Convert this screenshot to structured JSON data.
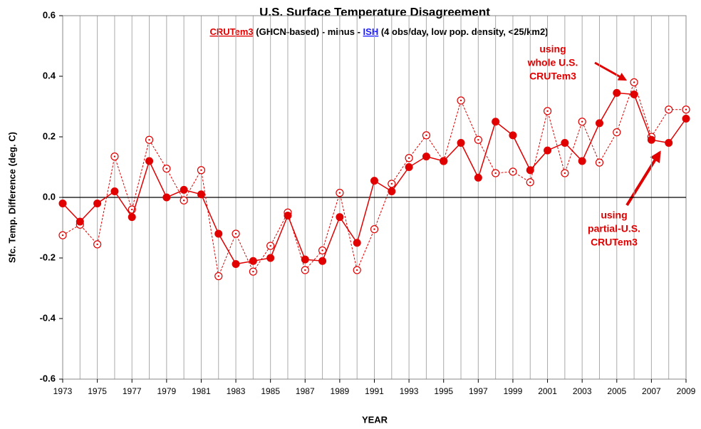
{
  "chart_data": {
    "type": "line",
    "title": "U.S. Surface Temperature Disagreement",
    "subtitle": [
      {
        "text": "CRUTem3",
        "color": "#e00000",
        "underline": true
      },
      {
        "text": "(GHCN-based)",
        "color": "#000000"
      },
      {
        "text": "- minus -",
        "color": "#000000"
      },
      {
        "text": "ISH",
        "color": "#1a1aff",
        "underline": true
      },
      {
        "text": "(4 obs/day, low pop. density, <25/km2)",
        "color": "#000000"
      }
    ],
    "x_label": "YEAR",
    "y_label": "Sfc. Temp. Difference (deg. C)",
    "annotations": [
      [
        "using",
        "whole U.S.",
        "CRUTem3"
      ],
      [
        "using",
        "partial-U.S.",
        "CRUTem3"
      ]
    ],
    "x": [
      1973,
      1974,
      1975,
      1976,
      1977,
      1978,
      1979,
      1980,
      1981,
      1982,
      1983,
      1984,
      1985,
      1986,
      1987,
      1988,
      1989,
      1990,
      1991,
      1992,
      1993,
      1994,
      1995,
      1996,
      1997,
      1998,
      1999,
      2000,
      2001,
      2002,
      2003,
      2004,
      2005,
      2006,
      2007,
      2008,
      2009
    ],
    "series": [
      {
        "color": "#e00000",
        "marker": "filled",
        "dashed": false,
        "values": [
          -0.02,
          -0.08,
          -0.02,
          0.02,
          -0.065,
          0.12,
          0.0,
          0.025,
          0.01,
          -0.12,
          -0.22,
          -0.21,
          -0.2,
          -0.06,
          -0.205,
          -0.21,
          -0.065,
          -0.15,
          0.055,
          0.02,
          0.1,
          0.135,
          0.12,
          0.18,
          0.065,
          0.25,
          0.205,
          0.09,
          0.155,
          0.18,
          0.12,
          0.245,
          0.345,
          0.34,
          0.19,
          0.18,
          0.26
        ]
      },
      {
        "color": "#e00000",
        "marker": "open",
        "dashed": true,
        "values": [
          -0.125,
          -0.09,
          -0.155,
          0.135,
          -0.04,
          0.19,
          0.095,
          -0.01,
          0.09,
          -0.26,
          -0.12,
          -0.245,
          -0.16,
          -0.05,
          -0.24,
          -0.175,
          0.015,
          -0.24,
          -0.105,
          0.045,
          0.13,
          0.205,
          0.12,
          0.32,
          0.19,
          0.08,
          0.085,
          0.05,
          0.285,
          0.08,
          0.25,
          0.115,
          0.215,
          0.38,
          0.2,
          0.29,
          0.29
        ]
      }
    ],
    "xlim": [
      1973,
      2009
    ],
    "xticks": [
      1973,
      1975,
      1977,
      1979,
      1981,
      1983,
      1985,
      1987,
      1989,
      1991,
      1993,
      1995,
      1997,
      1999,
      2001,
      2003,
      2005,
      2007,
      2009
    ],
    "ylim": [
      -0.6,
      0.6
    ],
    "yticks": [
      -0.6,
      -0.4,
      -0.2,
      {
        "value": 0,
        "label": "0.0"
      },
      0.2,
      0.4,
      0.6
    ],
    "grid": true
  }
}
